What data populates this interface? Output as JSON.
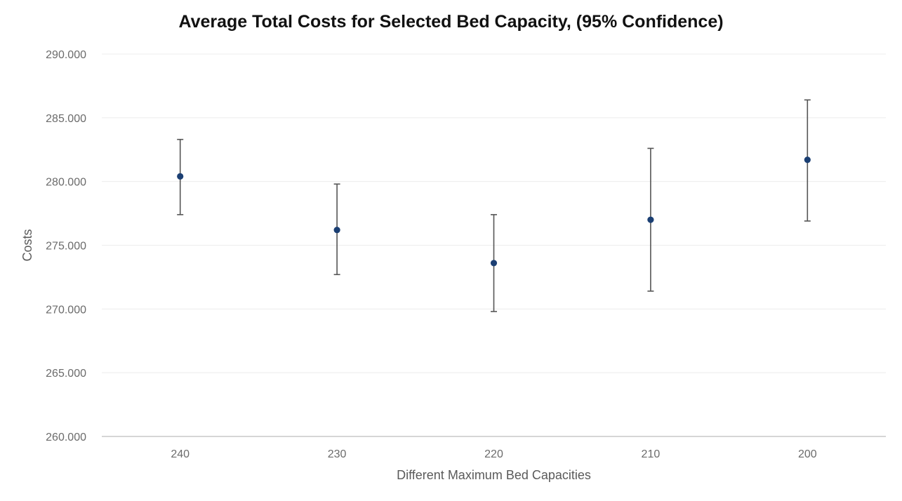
{
  "chart_data": {
    "type": "scatter",
    "title": "Average Total Costs for Selected Bed Capacity, (95% Confidence)",
    "xlabel": "Different Maximum Bed Capacities",
    "ylabel": "Costs",
    "categories": [
      "240",
      "230",
      "220",
      "210",
      "200"
    ],
    "series": [
      {
        "values": [
          280.4,
          276.2,
          273.6,
          277.0,
          281.7
        ],
        "lower": [
          277.4,
          272.7,
          269.8,
          271.4,
          276.9
        ],
        "upper": [
          283.3,
          279.8,
          277.4,
          282.6,
          286.4
        ]
      }
    ],
    "y_ticks": [
      "260.000",
      "265.000",
      "270.000",
      "275.000",
      "280.000",
      "285.000",
      "290.000"
    ],
    "ylim": [
      260,
      290
    ],
    "grid": true,
    "legend": "none",
    "colors": {
      "point": "#1b3f73",
      "error_bar": "#555555",
      "grid": "#ececec",
      "axis": "#c8c8c8"
    }
  }
}
